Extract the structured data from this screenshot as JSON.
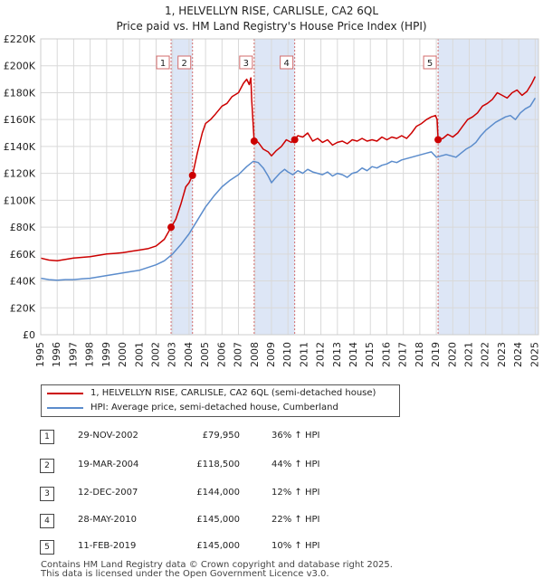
{
  "chart_data": {
    "type": "line",
    "title": "1, HELVELLYN RISE, CARLISLE, CA2 6QL",
    "subtitle": "Price paid vs. HM Land Registry's House Price Index (HPI)",
    "xlabel": "",
    "ylabel": "",
    "xlim": [
      1995,
      2025.2
    ],
    "ylim": [
      0,
      220000
    ],
    "y_ticks": [
      0,
      20000,
      40000,
      60000,
      80000,
      100000,
      120000,
      140000,
      160000,
      180000,
      200000,
      220000
    ],
    "y_tick_labels": [
      "£0",
      "£20K",
      "£40K",
      "£60K",
      "£80K",
      "£100K",
      "£120K",
      "£140K",
      "£160K",
      "£180K",
      "£200K",
      "£220K"
    ],
    "x_ticks": [
      1995,
      1996,
      1997,
      1998,
      1999,
      2000,
      2001,
      2002,
      2003,
      2004,
      2005,
      2006,
      2007,
      2008,
      2009,
      2010,
      2011,
      2012,
      2013,
      2014,
      2015,
      2016,
      2017,
      2018,
      2019,
      2020,
      2021,
      2022,
      2023,
      2024,
      2025
    ],
    "x_tick_labels": [
      "1995",
      "1996",
      "1997",
      "1998",
      "1999",
      "2000",
      "2001",
      "2002",
      "2003",
      "2004",
      "2005",
      "2006",
      "2007",
      "2008",
      "2009",
      "2010",
      "2011",
      "2012",
      "2013",
      "2014",
      "2015",
      "2016",
      "2017",
      "2018",
      "2019",
      "2020",
      "2021",
      "2022",
      "2023",
      "2024",
      "2025"
    ],
    "grid": true,
    "series": [
      {
        "name": "1, HELVELLYN RISE, CARLISLE, CA2 6QL (semi-detached house)",
        "color": "#cc0000",
        "x": [
          1995.0,
          1995.5,
          1996.0,
          1996.5,
          1997.0,
          1997.5,
          1998.0,
          1998.5,
          1999.0,
          1999.5,
          2000.0,
          2000.5,
          2001.0,
          2001.5,
          2002.0,
          2002.5,
          2002.91,
          2003.2,
          2003.5,
          2003.8,
          2004.0,
          2004.21,
          2004.5,
          2004.8,
          2005.0,
          2005.3,
          2005.6,
          2006.0,
          2006.3,
          2006.6,
          2007.0,
          2007.3,
          2007.5,
          2007.65,
          2007.75,
          2007.8,
          2007.95,
          2008.2,
          2008.5,
          2008.8,
          2009.0,
          2009.3,
          2009.6,
          2009.9,
          2010.2,
          2010.41,
          2010.6,
          2010.9,
          2011.2,
          2011.5,
          2011.8,
          2012.1,
          2012.4,
          2012.7,
          2013.0,
          2013.3,
          2013.6,
          2013.9,
          2014.2,
          2014.5,
          2014.8,
          2015.1,
          2015.4,
          2015.7,
          2016.0,
          2016.3,
          2016.6,
          2016.9,
          2017.2,
          2017.5,
          2017.8,
          2018.1,
          2018.4,
          2018.7,
          2018.95,
          2019.05,
          2019.11,
          2019.4,
          2019.7,
          2020.0,
          2020.3,
          2020.6,
          2020.9,
          2021.2,
          2021.5,
          2021.8,
          2022.1,
          2022.4,
          2022.7,
          2023.0,
          2023.3,
          2023.6,
          2023.9,
          2024.2,
          2024.5,
          2024.8,
          2025.0
        ],
        "values": [
          57000,
          55500,
          55000,
          56000,
          57000,
          57500,
          58000,
          59000,
          60000,
          60500,
          61000,
          62000,
          63000,
          64000,
          66000,
          71000,
          79950,
          86000,
          97000,
          110000,
          113000,
          118500,
          135000,
          150000,
          157000,
          160000,
          164000,
          170000,
          172000,
          177000,
          180000,
          187000,
          190000,
          186000,
          191000,
          175000,
          144000,
          143000,
          138000,
          136000,
          133000,
          137000,
          140000,
          145000,
          143000,
          145000,
          148000,
          147000,
          150000,
          144000,
          146000,
          143000,
          145000,
          141000,
          143000,
          144000,
          142000,
          145000,
          144000,
          146000,
          144000,
          145000,
          144000,
          147000,
          145000,
          147000,
          146000,
          148000,
          146000,
          150000,
          155000,
          157000,
          160000,
          162000,
          163000,
          160000,
          145000,
          146000,
          149000,
          147000,
          150000,
          155000,
          160000,
          162000,
          165000,
          170000,
          172000,
          175000,
          180000,
          178000,
          176000,
          180000,
          182000,
          178000,
          181000,
          187000,
          192000
        ]
      },
      {
        "name": "HPI: Average price, semi-detached house, Cumberland",
        "color": "#5b8ccc",
        "x": [
          1995.0,
          1995.5,
          1996.0,
          1996.5,
          1997.0,
          1997.5,
          1998.0,
          1998.5,
          1999.0,
          1999.5,
          2000.0,
          2000.5,
          2001.0,
          2001.5,
          2002.0,
          2002.5,
          2003.0,
          2003.5,
          2004.0,
          2004.5,
          2005.0,
          2005.5,
          2006.0,
          2006.5,
          2007.0,
          2007.5,
          2007.9,
          2008.2,
          2008.5,
          2008.8,
          2009.0,
          2009.2,
          2009.5,
          2009.8,
          2010.0,
          2010.3,
          2010.6,
          2010.9,
          2011.2,
          2011.5,
          2011.8,
          2012.1,
          2012.4,
          2012.7,
          2013.0,
          2013.3,
          2013.6,
          2013.9,
          2014.2,
          2014.5,
          2014.8,
          2015.1,
          2015.4,
          2015.7,
          2016.0,
          2016.3,
          2016.6,
          2016.9,
          2017.2,
          2017.5,
          2017.8,
          2018.1,
          2018.4,
          2018.7,
          2019.0,
          2019.3,
          2019.6,
          2019.9,
          2020.2,
          2020.5,
          2020.8,
          2021.1,
          2021.4,
          2021.7,
          2022.0,
          2022.3,
          2022.6,
          2022.9,
          2023.2,
          2023.5,
          2023.8,
          2024.1,
          2024.4,
          2024.7,
          2025.0
        ],
        "values": [
          42000,
          41000,
          40500,
          41000,
          41000,
          41500,
          42000,
          43000,
          44000,
          45000,
          46000,
          47000,
          48000,
          50000,
          52000,
          55000,
          60000,
          67000,
          75000,
          85000,
          95000,
          103000,
          110000,
          115000,
          119000,
          125000,
          129000,
          128000,
          124000,
          118000,
          113000,
          116000,
          120000,
          123000,
          121000,
          119000,
          122000,
          120000,
          123000,
          121000,
          120000,
          119000,
          121000,
          118000,
          120000,
          119000,
          117000,
          120000,
          121000,
          124000,
          122000,
          125000,
          124000,
          126000,
          127000,
          129000,
          128000,
          130000,
          131000,
          132000,
          133000,
          134000,
          135000,
          136000,
          132000,
          133000,
          134000,
          133000,
          132000,
          135000,
          138000,
          140000,
          143000,
          148000,
          152000,
          155000,
          158000,
          160000,
          162000,
          163000,
          160000,
          165000,
          168000,
          170000,
          176000
        ]
      }
    ],
    "vlines": [
      2002.91,
      2004.21,
      2007.95,
      2010.41,
      2019.11
    ],
    "bands": [
      [
        2002.91,
        2004.21
      ],
      [
        2007.95,
        2010.41
      ],
      [
        2019.11,
        2025.2
      ]
    ],
    "sale_points": [
      {
        "label": "1",
        "x": 2002.91,
        "y": 79950
      },
      {
        "label": "2",
        "x": 2004.21,
        "y": 118500
      },
      {
        "label": "3",
        "x": 2007.95,
        "y": 144000
      },
      {
        "label": "4",
        "x": 2010.41,
        "y": 145000
      },
      {
        "label": "5",
        "x": 2019.11,
        "y": 145000
      }
    ]
  },
  "legend": [
    {
      "label": "1, HELVELLYN RISE, CARLISLE, CA2 6QL (semi-detached house)",
      "color": "#cc0000"
    },
    {
      "label": "HPI: Average price, semi-detached house, Cumberland",
      "color": "#5b8ccc"
    }
  ],
  "transactions": [
    {
      "num": "1",
      "date": "29-NOV-2002",
      "price": "£79,950",
      "hpi": "36% ↑ HPI"
    },
    {
      "num": "2",
      "date": "19-MAR-2004",
      "price": "£118,500",
      "hpi": "44% ↑ HPI"
    },
    {
      "num": "3",
      "date": "12-DEC-2007",
      "price": "£144,000",
      "hpi": "12% ↑ HPI"
    },
    {
      "num": "4",
      "date": "28-MAY-2010",
      "price": "£145,000",
      "hpi": "22% ↑ HPI"
    },
    {
      "num": "5",
      "date": "11-FEB-2019",
      "price": "£145,000",
      "hpi": "10% ↑ HPI"
    }
  ],
  "footer": {
    "line1": "Contains HM Land Registry data © Crown copyright and database right 2025.",
    "line2": "This data is licensed under the Open Government Licence v3.0."
  }
}
